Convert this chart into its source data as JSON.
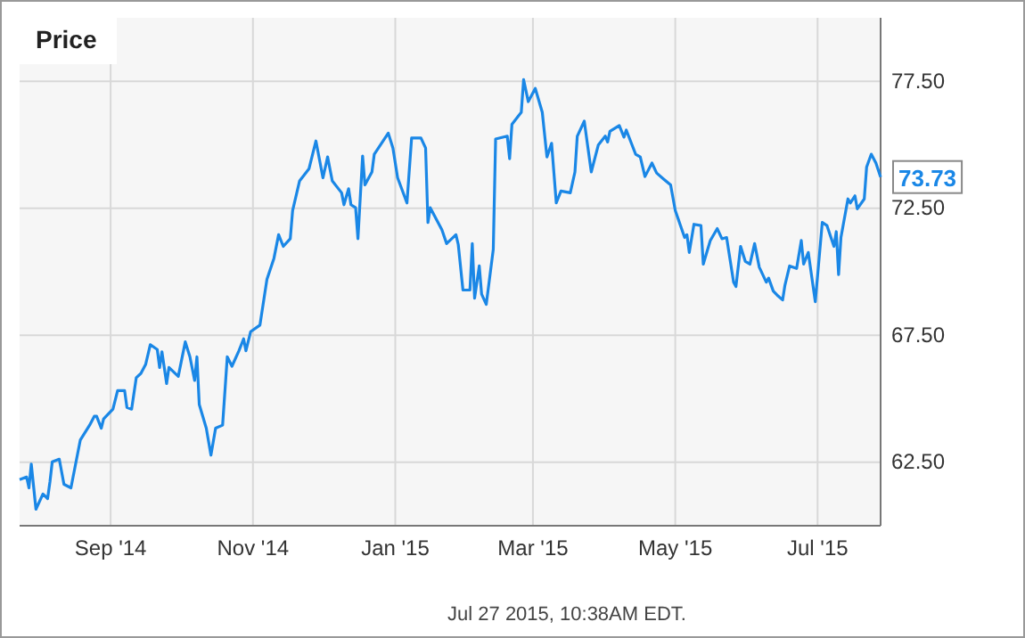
{
  "chart_data": {
    "type": "line",
    "title": "Price",
    "x": [
      "2014-07-24",
      "2014-07-27",
      "2014-07-28",
      "2014-07-29",
      "2014-07-31",
      "2014-08-03",
      "2014-08-05",
      "2014-08-06",
      "2014-08-07",
      "2014-08-10",
      "2014-08-12",
      "2014-08-15",
      "2014-08-17",
      "2014-08-19",
      "2014-08-23",
      "2014-08-25",
      "2014-08-26",
      "2014-08-28",
      "2014-08-29",
      "2014-09-02",
      "2014-09-04",
      "2014-09-07",
      "2014-09-08",
      "2014-09-10",
      "2014-09-12",
      "2014-09-14",
      "2014-09-16",
      "2014-09-18",
      "2014-09-21",
      "2014-09-22",
      "2014-09-23",
      "2014-09-25",
      "2014-09-26",
      "2014-09-30",
      "2014-10-03",
      "2014-10-05",
      "2014-10-07",
      "2014-10-08",
      "2014-10-09",
      "2014-10-12",
      "2014-10-14",
      "2014-10-16",
      "2014-10-19",
      "2014-10-21",
      "2014-10-23",
      "2014-10-26",
      "2014-10-28",
      "2014-10-29",
      "2014-10-31",
      "2014-11-04",
      "2014-11-07",
      "2014-11-10",
      "2014-11-12",
      "2014-11-14",
      "2014-11-17",
      "2014-11-18",
      "2014-11-21",
      "2014-11-25",
      "2014-11-28",
      "2014-12-01",
      "2014-12-03",
      "2014-12-05",
      "2014-12-09",
      "2014-12-10",
      "2014-12-12",
      "2014-12-13",
      "2014-12-15",
      "2014-12-16",
      "2014-12-18",
      "2014-12-19",
      "2014-12-22",
      "2014-12-23",
      "2014-12-29",
      "2014-12-31",
      "2015-01-02",
      "2015-01-06",
      "2015-01-08",
      "2015-01-12",
      "2015-01-14",
      "2015-01-15",
      "2015-01-16",
      "2015-01-21",
      "2015-01-23",
      "2015-01-27",
      "2015-01-28",
      "2015-01-30",
      "2015-02-02",
      "2015-02-03",
      "2015-02-04",
      "2015-02-06",
      "2015-02-07",
      "2015-02-09",
      "2015-02-12",
      "2015-02-13",
      "2015-02-18",
      "2015-02-19",
      "2015-02-20",
      "2015-02-24",
      "2015-02-25",
      "2015-02-27",
      "2015-03-02",
      "2015-03-05",
      "2015-03-07",
      "2015-03-09",
      "2015-03-11",
      "2015-03-13",
      "2015-03-17",
      "2015-03-19",
      "2015-03-20",
      "2015-03-23",
      "2015-03-26",
      "2015-03-29",
      "2015-04-01",
      "2015-04-02",
      "2015-04-03",
      "2015-04-07",
      "2015-04-09",
      "2015-04-10",
      "2015-04-14",
      "2015-04-16",
      "2015-04-18",
      "2015-04-21",
      "2015-04-23",
      "2015-04-26",
      "2015-04-29",
      "2015-05-01",
      "2015-05-05",
      "2015-05-06",
      "2015-05-07",
      "2015-05-09",
      "2015-05-12",
      "2015-05-13",
      "2015-05-16",
      "2015-05-19",
      "2015-05-21",
      "2015-05-23",
      "2015-05-26",
      "2015-05-27",
      "2015-05-29",
      "2015-05-31",
      "2015-06-02",
      "2015-06-04",
      "2015-06-06",
      "2015-06-09",
      "2015-06-10",
      "2015-06-12",
      "2015-06-14",
      "2015-06-16",
      "2015-06-17",
      "2015-06-19",
      "2015-06-22",
      "2015-06-24",
      "2015-06-25",
      "2015-06-27",
      "2015-06-30",
      "2015-07-03",
      "2015-07-05",
      "2015-07-08",
      "2015-07-09",
      "2015-07-10",
      "2015-07-11",
      "2015-07-14",
      "2015-07-15",
      "2015-07-17",
      "2015-07-18",
      "2015-07-21",
      "2015-07-22",
      "2015-07-24",
      "2015-07-26",
      "2015-07-28"
    ],
    "series": [
      {
        "color": "#1a87e6",
        "values": [
          61.82,
          61.92,
          61.49,
          62.43,
          60.65,
          61.25,
          61.07,
          61.73,
          62.52,
          62.62,
          61.63,
          61.49,
          62.43,
          63.37,
          63.96,
          64.31,
          64.31,
          63.84,
          64.21,
          64.59,
          65.32,
          65.32,
          64.66,
          64.59,
          65.83,
          66.0,
          66.35,
          67.13,
          66.94,
          66.23,
          66.85,
          65.6,
          66.23,
          65.88,
          67.24,
          66.65,
          65.72,
          66.65,
          64.77,
          63.84,
          62.78,
          63.84,
          63.96,
          66.65,
          66.28,
          66.89,
          67.36,
          66.89,
          67.64,
          67.9,
          69.7,
          70.53,
          71.46,
          71.0,
          71.3,
          72.41,
          73.58,
          74.05,
          75.15,
          73.7,
          74.52,
          73.58,
          73.11,
          72.64,
          73.27,
          72.64,
          72.52,
          71.3,
          74.56,
          73.42,
          73.93,
          74.63,
          75.46,
          74.87,
          73.7,
          72.71,
          75.27,
          75.27,
          74.87,
          71.94,
          72.52,
          71.65,
          71.11,
          71.46,
          71.07,
          69.28,
          69.28,
          71.11,
          68.96,
          70.23,
          69.12,
          68.72,
          70.88,
          75.23,
          75.34,
          74.45,
          75.81,
          76.28,
          77.57,
          76.7,
          77.22,
          76.28,
          74.52,
          75.06,
          72.71,
          73.18,
          73.11,
          73.93,
          75.34,
          75.93,
          73.93,
          74.99,
          75.34,
          75.11,
          75.53,
          75.76,
          75.3,
          75.58,
          74.63,
          74.52,
          73.75,
          74.28,
          73.89,
          73.65,
          73.42,
          72.41,
          71.35,
          71.46,
          70.76,
          71.87,
          71.82,
          70.3,
          71.23,
          71.7,
          71.3,
          71.35,
          69.59,
          69.42,
          71.0,
          70.41,
          70.3,
          71.11,
          70.18,
          69.59,
          69.75,
          69.24,
          69.05,
          68.89,
          69.47,
          70.23,
          70.13,
          71.23,
          70.3,
          70.76,
          68.82,
          71.94,
          71.82,
          71.0,
          71.58,
          69.89,
          71.35,
          72.87,
          72.71,
          72.99,
          72.48,
          72.87,
          74.12,
          74.63,
          74.28,
          73.73
        ]
      }
    ],
    "xlim": [
      "2014-07-24",
      "2015-07-28"
    ],
    "xticks": [
      {
        "value": "2014-09-01",
        "label": "Sep '14"
      },
      {
        "value": "2014-11-01",
        "label": "Nov '14"
      },
      {
        "value": "2015-01-01",
        "label": "Jan '15"
      },
      {
        "value": "2015-03-01",
        "label": "Mar '15"
      },
      {
        "value": "2015-05-01",
        "label": "May '15"
      },
      {
        "value": "2015-07-01",
        "label": "Jul '15"
      }
    ],
    "ylim": [
      60,
      80
    ],
    "yticks": [
      {
        "value": 62.5,
        "label": "62.50"
      },
      {
        "value": 67.5,
        "label": "67.50"
      },
      {
        "value": 72.5,
        "label": "72.50"
      },
      {
        "value": 77.5,
        "label": "77.50"
      }
    ],
    "grid": true,
    "annotations": [
      "Jul 27 2015, 10:38AM EDT.",
      {
        "text": "73.73",
        "x": "2015-07-28",
        "y": 73.73
      }
    ]
  }
}
